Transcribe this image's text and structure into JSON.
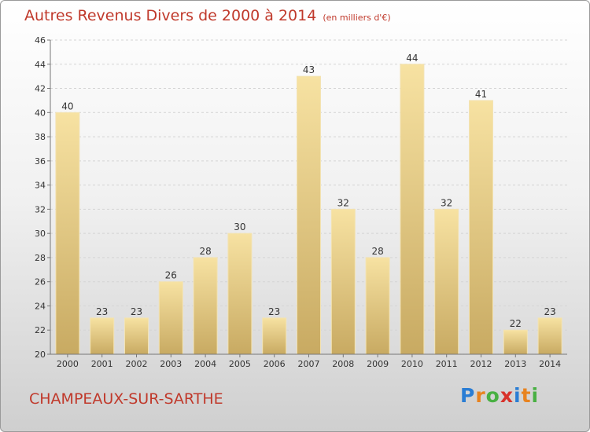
{
  "header": {
    "title": "Autres Revenus Divers de 2000 à 2014",
    "subtitle": "(en milliers d'€)"
  },
  "footer": {
    "place": "CHAMPEAUX-SUR-SARTHE",
    "logo_letters": [
      "P",
      "r",
      "o",
      "x",
      "i",
      "t",
      "i"
    ]
  },
  "colors": {
    "bar_light": "#f7e2a2",
    "bar_dark": "#c8aa62",
    "title": "#c0392b"
  },
  "chart_data": {
    "type": "bar",
    "categories": [
      "2000",
      "2001",
      "2002",
      "2003",
      "2004",
      "2005",
      "2006",
      "2007",
      "2008",
      "2009",
      "2010",
      "2011",
      "2012",
      "2013",
      "2014"
    ],
    "values": [
      40,
      23,
      23,
      26,
      28,
      30,
      23,
      43,
      32,
      28,
      44,
      32,
      41,
      22,
      23
    ],
    "ylim": [
      20,
      46
    ],
    "yticks": [
      20,
      22,
      24,
      26,
      28,
      30,
      32,
      34,
      36,
      38,
      40,
      42,
      44,
      46
    ],
    "grid": true,
    "xlabel": "",
    "ylabel": ""
  }
}
